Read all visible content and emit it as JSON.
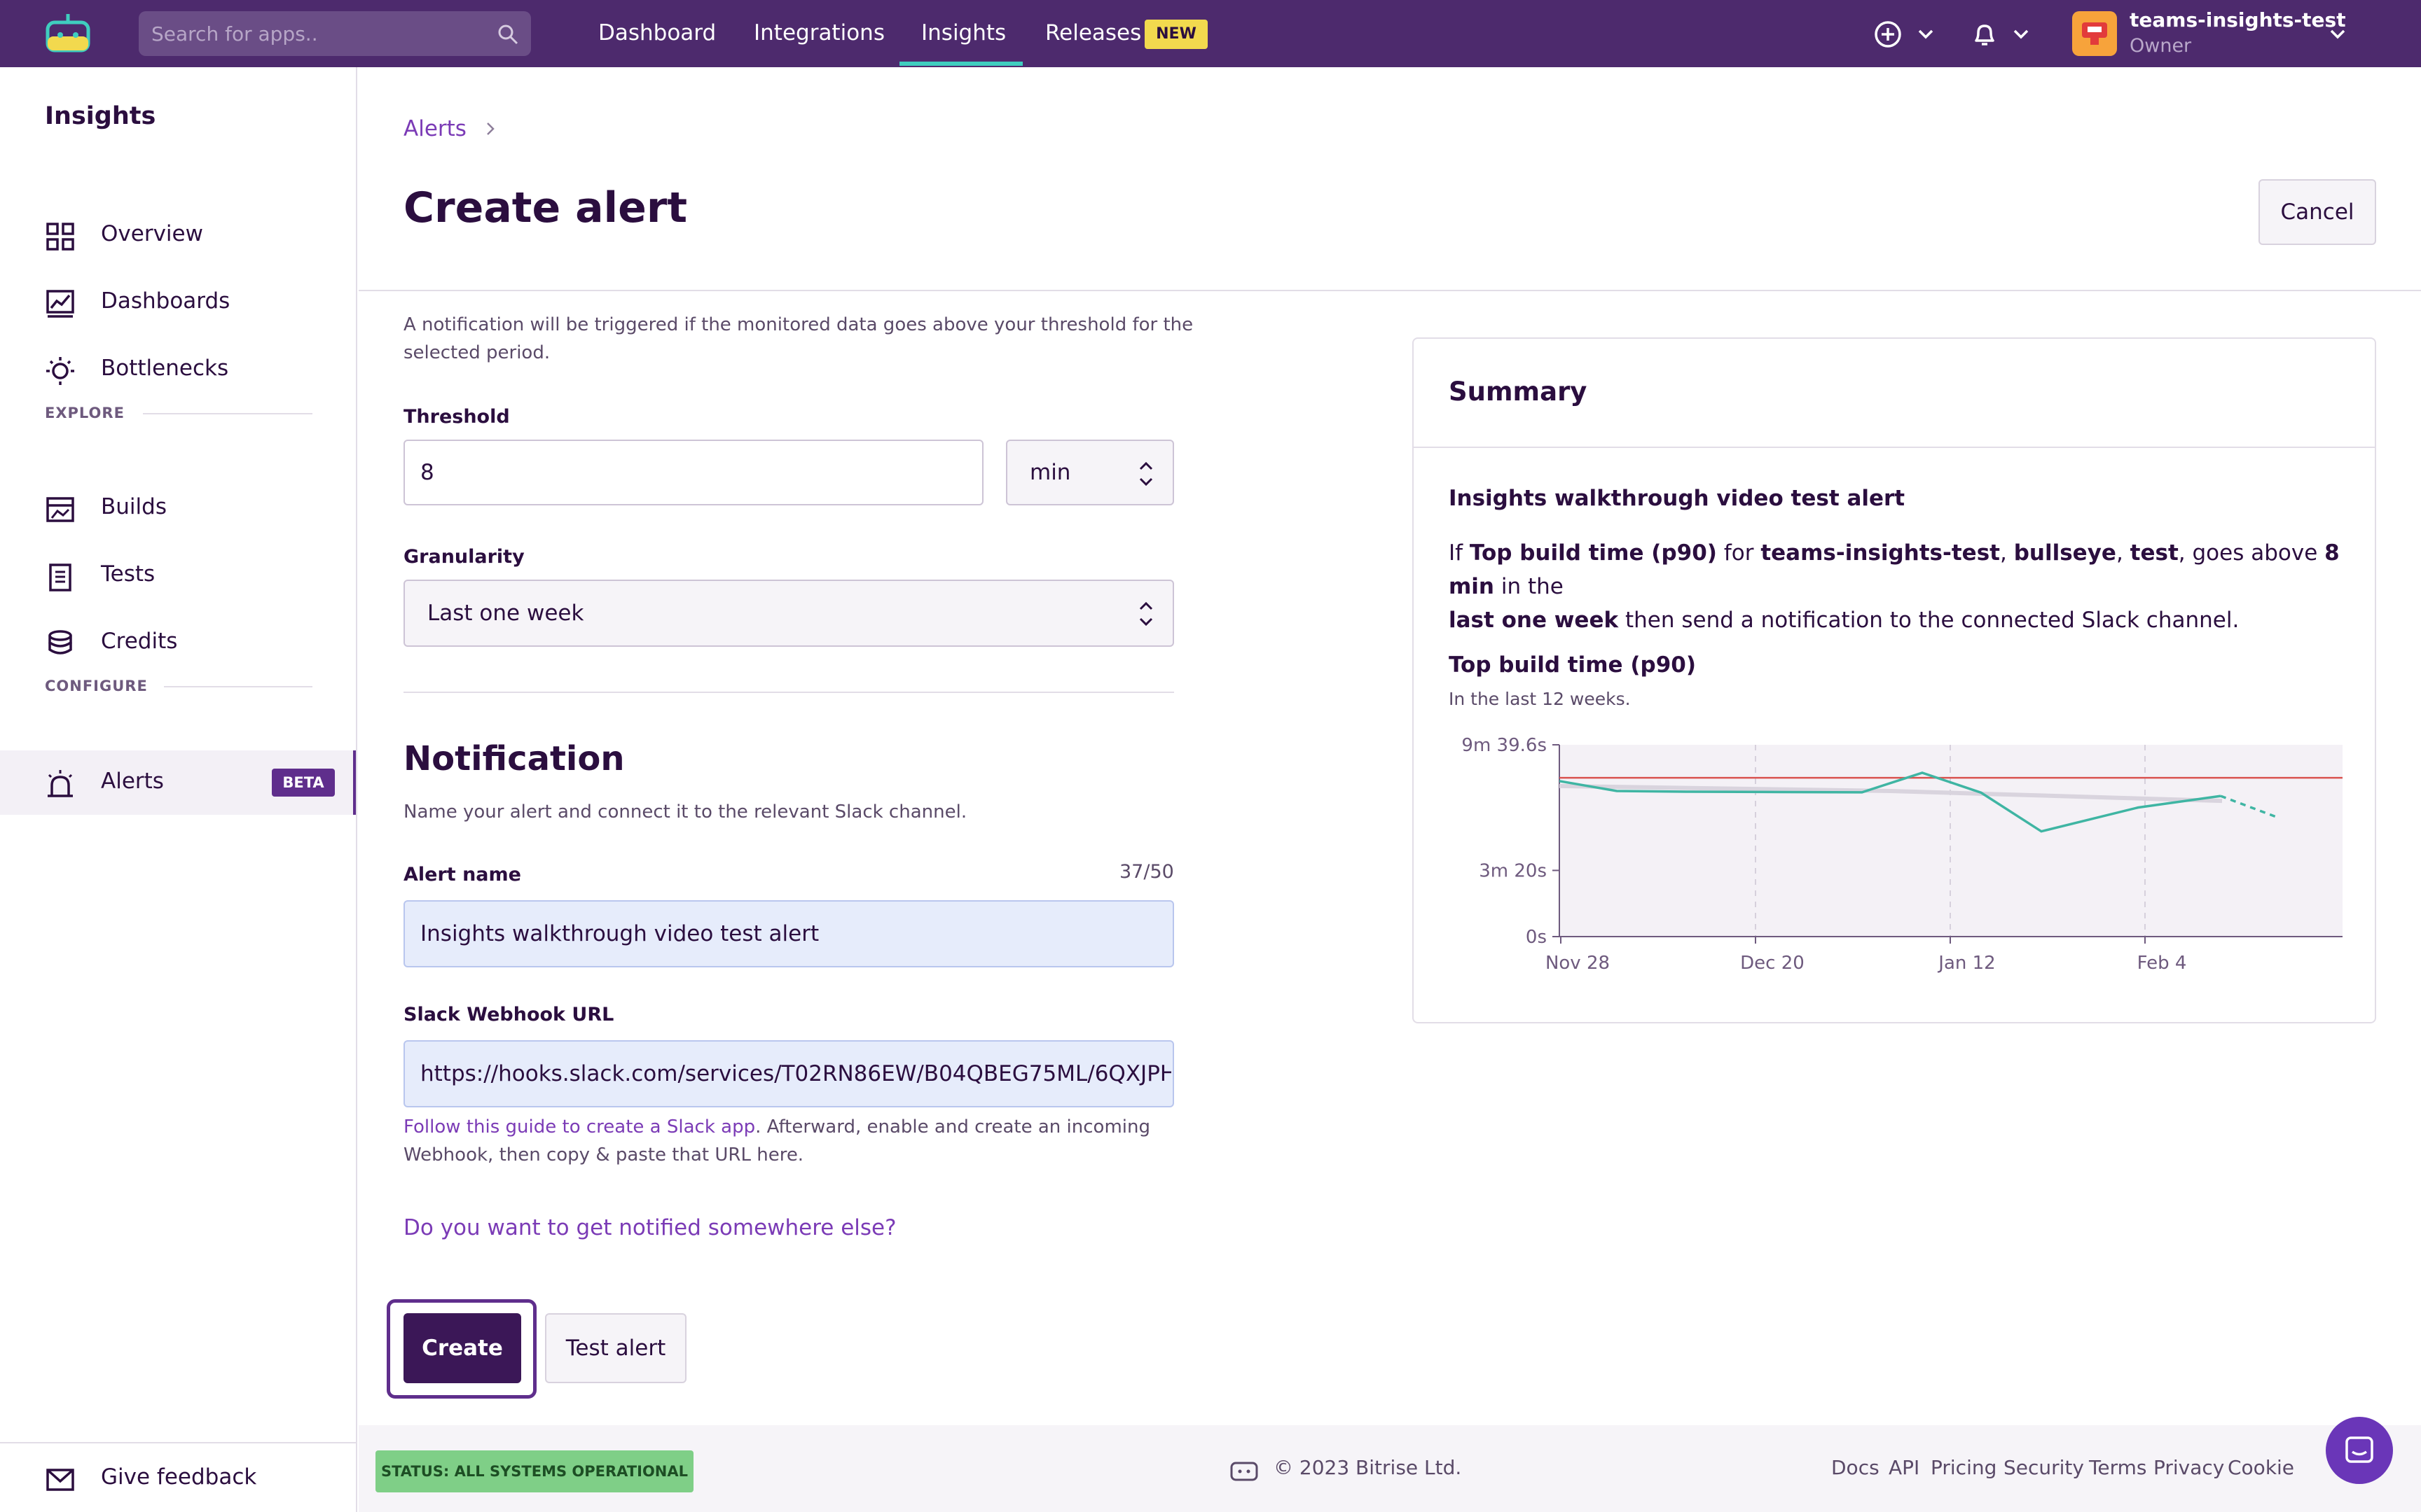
{
  "topnav": {
    "search_placeholder": "Search for apps..",
    "links": [
      "Dashboard",
      "Integrations",
      "Insights",
      "Releases"
    ],
    "active_link": "Insights",
    "new_badge": "NEW",
    "org_name": "teams-insights-test",
    "org_role": "Owner"
  },
  "sidebar": {
    "title": "Insights",
    "items": [
      {
        "label": "Overview",
        "icon": "grid-icon"
      },
      {
        "label": "Dashboards",
        "icon": "chart-icon"
      },
      {
        "label": "Bottlenecks",
        "icon": "bulb-icon"
      }
    ],
    "explore_label": "EXPLORE",
    "explore_items": [
      {
        "label": "Builds",
        "icon": "builds-icon"
      },
      {
        "label": "Tests",
        "icon": "clipboard-icon"
      },
      {
        "label": "Credits",
        "icon": "coins-icon"
      }
    ],
    "configure_label": "CONFIGURE",
    "configure_items": [
      {
        "label": "Alerts",
        "icon": "siren-icon",
        "badge": "BETA",
        "active": true
      }
    ],
    "feedback_label": "Give feedback"
  },
  "main": {
    "breadcrumb": "Alerts",
    "title": "Create alert",
    "cancel_label": "Cancel",
    "threshold_help": [
      "A notification will be triggered if the monitored data goes above your threshold for the",
      "selected period."
    ],
    "threshold_label": "Threshold",
    "threshold_value": "8",
    "threshold_unit": "min",
    "granularity_label": "Granularity",
    "granularity_value": "Last one week",
    "notification_title": "Notification",
    "notification_help": "Name your alert and connect it to the relevant Slack channel.",
    "alert_name_label": "Alert name",
    "alert_name_value": "Insights walkthrough video test alert",
    "char_count": "37/50",
    "webhook_label": "Slack Webhook URL",
    "webhook_value": "https://hooks.slack.com/services/T02RN86EW/B04QBEG75ML/6QXJPH",
    "webhook_help_link": "Follow this guide to create a Slack app",
    "webhook_help_rest": ". Afterward, enable and create an incoming",
    "webhook_help_line2": "Webhook, then copy & paste that URL here.",
    "notify_else": "Do you want to get notified somewhere else?",
    "create_label": "Create",
    "test_label": "Test alert"
  },
  "summary": {
    "title": "Summary",
    "alert_name": "Insights walkthrough video test alert",
    "s_if": "If ",
    "s_metric": "Top build time (p90)",
    "s_for": " for ",
    "s_app1": "teams-insights-test",
    "s_comma1": ", ",
    "s_app2": "bullseye",
    "s_comma2": ", ",
    "s_app3": "test",
    "s_goes": ", goes above ",
    "s_threshold": "8 min",
    "s_in": " in the ",
    "s_period": "last one week",
    "s_end": " then send a notification to the connected Slack channel.",
    "chart_title": "Top build time (p90)",
    "chart_subtitle": "In the last 12 weeks."
  },
  "chart_data": {
    "type": "line",
    "y_tick_labels": [
      "9m 39.6s",
      "3m 20s",
      "0s"
    ],
    "y_tick_values": [
      579.6,
      200,
      0
    ],
    "ylim": [
      0,
      579.6
    ],
    "x_tick_labels": [
      "Nov 28",
      "Dec 20",
      "Jan 12",
      "Feb 4"
    ],
    "threshold": 480,
    "series": [
      {
        "values": [
          470,
          440,
          438,
          437,
          436,
          495,
          435,
          318,
          390,
          425,
          358
        ],
        "style": "solid",
        "color": "#3fb5a3"
      },
      {
        "values": [
          455,
          450,
          445,
          440,
          430,
          420,
          410
        ],
        "style": "trend",
        "color": "#d9d4de"
      }
    ],
    "colors": {
      "threshold": "#d9534f",
      "plot_bg": "#f4f1f6",
      "line": "#3fb5a3"
    }
  },
  "footer": {
    "status": "STATUS: ALL SYSTEMS OPERATIONAL",
    "copyright": "© 2023 Bitrise Ltd.",
    "links": [
      "Docs",
      "API",
      "Pricing",
      "Security",
      "Terms",
      "Privacy",
      "Cookie"
    ]
  }
}
